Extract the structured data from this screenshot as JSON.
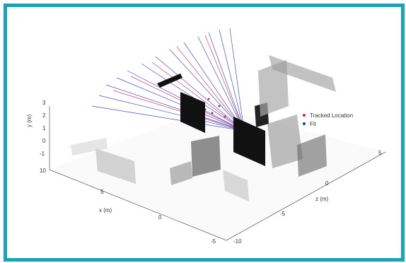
{
  "axes": {
    "y_label": "y (m)",
    "x_label": "x (m)",
    "z_label": "z (m)",
    "y_ticks": [
      "3",
      "2",
      "1",
      "0",
      "-1"
    ],
    "x_ticks": [
      "10",
      "5",
      "0",
      "-5"
    ],
    "z_ticks": [
      "-10",
      "-5",
      "0",
      "5"
    ]
  },
  "legend": {
    "items": [
      {
        "label": "Tracked Location",
        "color": "#cc2244"
      },
      {
        "label": "Fit",
        "color": "#2233cc"
      }
    ]
  },
  "colors": {
    "frame": "#1aa3b6",
    "rays_red": "#cc2244",
    "rays_blue": "#2233cc"
  }
}
